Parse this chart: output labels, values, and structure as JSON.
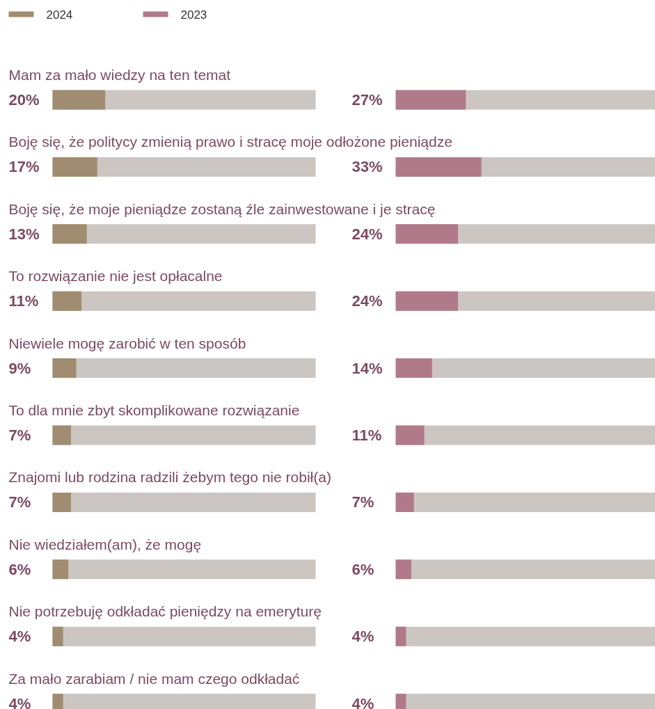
{
  "chart_data": [
    {
      "type": "bar",
      "orientation": "horizontal",
      "categories": [
        "Mam za mało wiedzy na ten temat",
        "Boję się, że politycy zmienią prawo i stracę moje odłożone pieniądze",
        "Boję się, że moje pieniądze zostaną źle zainwestowane i je stracę",
        "To rozwiązanie nie jest opłacalne",
        "Niewiele mogę zarobić w ten sposób",
        "To dla mnie zbyt skomplikowane rozwiązanie",
        "Znajomi lub rodzina radzili żebym tego nie robił(a)",
        "Nie wiedziałem(am), że mogę",
        "Nie potrzebuję odkładać pieniędzy na emeryturę",
        "Za mało zarabiam / nie mam czego odkładać"
      ],
      "series": [
        {
          "name": "2024",
          "color": "#a08c70",
          "values": [
            20,
            17,
            13,
            11,
            9,
            7,
            7,
            6,
            4,
            4
          ],
          "value_labels": [
            "20%",
            "17%",
            "13%",
            "11%",
            "9%",
            "7%",
            "7%",
            "6%",
            "4%",
            "4%"
          ]
        }
      ],
      "xlim": [
        0,
        100
      ],
      "legend": "top left",
      "tick_labels": false
    },
    {
      "type": "bar",
      "orientation": "horizontal",
      "categories": [
        null,
        null,
        null,
        null,
        null,
        null,
        null,
        null,
        null,
        null
      ],
      "series": [
        {
          "name": "2023",
          "color": "#b07a8a",
          "values": [
            27,
            33,
            24,
            24,
            14,
            11,
            7,
            6,
            4,
            4
          ],
          "value_labels": [
            "27%",
            "33%",
            "24%",
            "24%",
            "14%",
            "11%",
            "7%",
            "6%",
            "4%",
            "4%"
          ]
        }
      ],
      "xlim": [
        0,
        100
      ],
      "tick_labels": false
    }
  ]
}
